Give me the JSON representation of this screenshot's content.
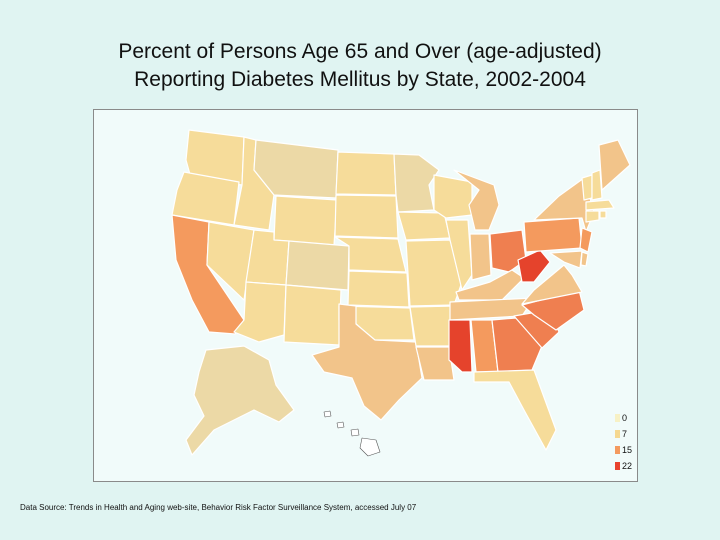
{
  "title": {
    "line1": "Percent of Persons Age 65 and Over (age-adjusted)",
    "line2": "Reporting Diabetes Mellitus by State, 2002-2004"
  },
  "legend": {
    "items": [
      {
        "label": "0",
        "color": "#f7f1c5"
      },
      {
        "label": "7",
        "color": "#f5d890"
      },
      {
        "label": "15",
        "color": "#f49a5e"
      },
      {
        "label": "22",
        "color": "#e8432e"
      }
    ]
  },
  "source": "Data Source: Trends in Health and Aging web-site, Behavior Risk Factor Surveillance System, accessed July 07",
  "colors": {
    "background": "#e0f4f2",
    "map_background": "#f1fbfa",
    "state_border": "#ffffff",
    "low": "#f6dc9a",
    "lowest": "#ecd9a6",
    "mid_low": "#f2c48a",
    "mid": "#f4a373",
    "high": "#ef7f50",
    "highest": "#e5432c"
  }
}
